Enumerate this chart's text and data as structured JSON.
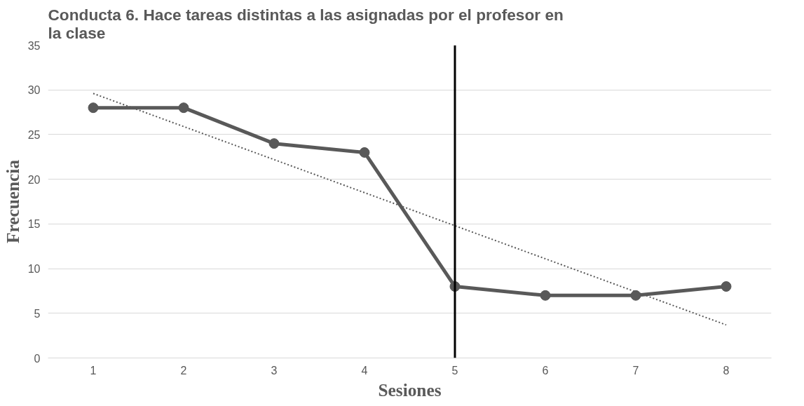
{
  "chart_data": {
    "type": "line",
    "title": "Conducta 6. Hace tareas distintas a las asignadas por el profesor en\nla clase",
    "xlabel": "Sesiones",
    "ylabel": "Frecuencia",
    "x": [
      1,
      2,
      3,
      4,
      5,
      6,
      7,
      8
    ],
    "series": [
      {
        "color": "#595959",
        "values": [
          28,
          28,
          24,
          23,
          8,
          7,
          7,
          8
        ],
        "marker": "circle",
        "line_style": "solid"
      },
      {
        "type": "line",
        "color": "#595959",
        "x": [
          1,
          8
        ],
        "values": [
          29.6,
          3.7
        ],
        "marker": "none",
        "line_style": "dotted"
      }
    ],
    "xlim": [
      0.5,
      8.5
    ],
    "xticks": [
      1,
      2,
      3,
      4,
      5,
      6,
      7,
      8
    ],
    "ylim": [
      0,
      35
    ],
    "yticks": [
      0,
      5,
      10,
      15,
      20,
      25,
      30,
      35
    ],
    "ref_lines": [
      {
        "axis": "x",
        "value": 5,
        "color": "#000000",
        "line_style": "solid"
      }
    ],
    "grid": "y"
  }
}
